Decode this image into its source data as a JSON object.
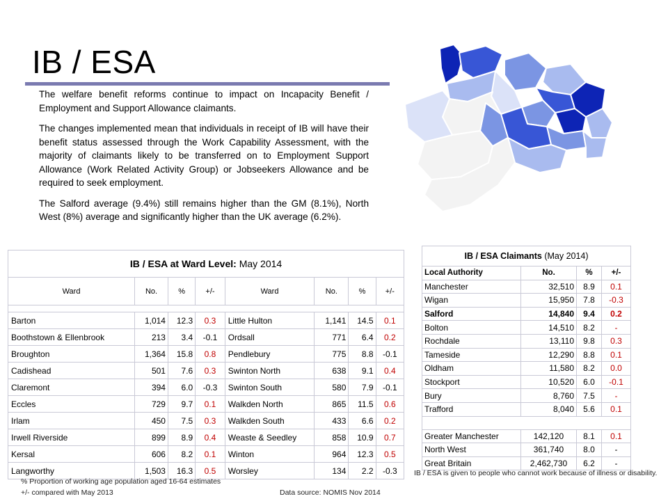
{
  "title": "IB / ESA",
  "paragraphs": [
    "The welfare benefit reforms continue to impact on Incapacity Benefit / Employment and Support Allowance claimants.",
    "The changes implemented mean that individuals in receipt of IB will have their benefit status assessed through the Work Capability Assessment, with the majority of claimants likely to be transferred on to Employment Support Allowance (Work Related Activity Group) or Jobseekers Allowance and be required to seek employment.",
    "The Salford average (9.4%) still remains higher than the GM (8.1%), North West (8%) average and significantly higher than the UK average (6.2%)."
  ],
  "map": {
    "colors": [
      "#0d24b5",
      "#3856d6",
      "#7b95e3",
      "#a9bbef",
      "#dbe2f8",
      "#f3f3f3"
    ]
  },
  "ward_table": {
    "title_bold": "IB / ESA at Ward Level:",
    "title_rest": "May 2014",
    "headers": [
      "Ward",
      "No.",
      "%",
      "+/-",
      "Ward",
      "No.",
      "%",
      "+/-"
    ],
    "rows": [
      {
        "w1": "Barton",
        "n1": "1,014",
        "p1": "12.3",
        "c1": "0.3",
        "w2": "Little Hulton",
        "n2": "1,141",
        "p2": "14.5",
        "c2": "0.1"
      },
      {
        "w1": "Boothstown & Ellenbrook",
        "n1": "213",
        "p1": "3.4",
        "c1": "-0.1",
        "w2": "Ordsall",
        "n2": "771",
        "p2": "6.4",
        "c2": "0.2"
      },
      {
        "w1": "Broughton",
        "n1": "1,364",
        "p1": "15.8",
        "c1": "0.8",
        "w2": "Pendlebury",
        "n2": "775",
        "p2": "8.8",
        "c2": "-0.1"
      },
      {
        "w1": "Cadishead",
        "n1": "501",
        "p1": "7.6",
        "c1": "0.3",
        "w2": "Swinton North",
        "n2": "638",
        "p2": "9.1",
        "c2": "0.4"
      },
      {
        "w1": "Claremont",
        "n1": "394",
        "p1": "6.0",
        "c1": "-0.3",
        "w2": "Swinton South",
        "n2": "580",
        "p2": "7.9",
        "c2": "-0.1"
      },
      {
        "w1": "Eccles",
        "n1": "729",
        "p1": "9.7",
        "c1": "0.1",
        "w2": "Walkden North",
        "n2": "865",
        "p2": "11.5",
        "c2": "0.6"
      },
      {
        "w1": "Irlam",
        "n1": "450",
        "p1": "7.5",
        "c1": "0.3",
        "w2": "Walkden South",
        "n2": "433",
        "p2": "6.6",
        "c2": "0.2"
      },
      {
        "w1": "Irwell Riverside",
        "n1": "899",
        "p1": "8.9",
        "c1": "0.4",
        "w2": "Weaste & Seedley",
        "n2": "858",
        "p2": "10.9",
        "c2": "0.7"
      },
      {
        "w1": "Kersal",
        "n1": "606",
        "p1": "8.2",
        "c1": "0.1",
        "w2": "Winton",
        "n2": "964",
        "p2": "12.3",
        "c2": "0.5"
      },
      {
        "w1": "Langworthy",
        "n1": "1,503",
        "p1": "16.3",
        "c1": "0.5",
        "w2": "Worsley",
        "n2": "134",
        "p2": "2.2",
        "c2": "-0.3"
      }
    ]
  },
  "claimants_table": {
    "title_bold": "IB / ESA Claimants",
    "title_rest": " (May 2014)",
    "headers": [
      "Local Authority",
      "No.",
      "%",
      "+/-"
    ],
    "rows": [
      {
        "la": "Manchester",
        "no": "32,510",
        "pct": "8.9",
        "chg": "0.1"
      },
      {
        "la": "Wigan",
        "no": "15,950",
        "pct": "7.8",
        "chg": "-0.3"
      },
      {
        "la": "Salford",
        "no": "14,840",
        "pct": "9.4",
        "chg": "0.2",
        "bold": true
      },
      {
        "la": "Bolton",
        "no": "14,510",
        "pct": "8.2",
        "chg": "-"
      },
      {
        "la": "Rochdale",
        "no": "13,110",
        "pct": "9.8",
        "chg": "0.3"
      },
      {
        "la": "Tameside",
        "no": "12,290",
        "pct": "8.8",
        "chg": "0.1"
      },
      {
        "la": "Oldham",
        "no": "11,580",
        "pct": "8.2",
        "chg": "0.0"
      },
      {
        "la": "Stockport",
        "no": "10,520",
        "pct": "6.0",
        "chg": "-0.1"
      },
      {
        "la": "Bury",
        "no": "8,760",
        "pct": "7.5",
        "chg": "-"
      },
      {
        "la": "Trafford",
        "no": "8,040",
        "pct": "5.6",
        "chg": "0.1"
      }
    ],
    "summary_rows": [
      {
        "la": "Greater Manchester",
        "no": "142,120",
        "pct": "8.1",
        "chg": "0.1",
        "red": true
      },
      {
        "la": "North West",
        "no": "361,740",
        "pct": "8.0",
        "chg": "-",
        "red": false
      },
      {
        "la": "Great Britain",
        "no": "2,462,730",
        "pct": "6.2",
        "chg": "-",
        "red": false
      }
    ]
  },
  "footnotes": {
    "proportion": "% Proportion of working age population aged 16-64 estimates",
    "compared": "+/- compared with  May 2013",
    "source": "Data source: NOMIS  Nov 2014",
    "ib_note": "IB / ESA is given to people who cannot work because of illness or disability."
  }
}
